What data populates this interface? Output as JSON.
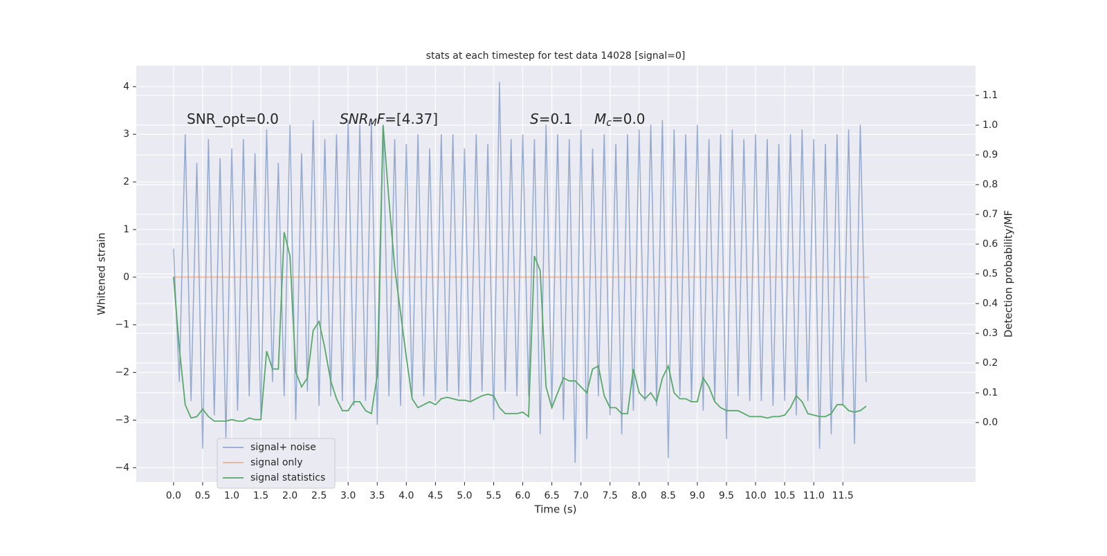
{
  "chart_data": {
    "type": "line",
    "title": "stats at each timestep for test data 14028 [signal=0]",
    "x_label": "Time (s)",
    "y_label": "Whitened strain",
    "y2_label": "Detection probability/MF",
    "grid": true,
    "legend": "lower left",
    "xlim": [
      -0.64,
      13.78
    ],
    "ylim": [
      -4.3,
      4.44
    ],
    "y2lim": [
      -0.2,
      1.2
    ],
    "xticks": [
      {
        "value": 0,
        "label": "0.0"
      },
      {
        "value": 0.5,
        "label": "0.5"
      },
      {
        "value": 1,
        "label": "1.0"
      },
      {
        "value": 1.5,
        "label": "1.5"
      },
      {
        "value": 2,
        "label": "2.0"
      },
      {
        "value": 2.5,
        "label": "2.5"
      },
      {
        "value": 3,
        "label": "3.0"
      },
      {
        "value": 3.5,
        "label": "3.5"
      },
      {
        "value": 4,
        "label": "4.0"
      },
      {
        "value": 4.5,
        "label": "4.5"
      },
      {
        "value": 5,
        "label": "5.0"
      },
      {
        "value": 5.5,
        "label": "5.5"
      },
      {
        "value": 6,
        "label": "6.0"
      },
      {
        "value": 6.5,
        "label": "6.5"
      },
      {
        "value": 7,
        "label": "7.0"
      },
      {
        "value": 7.5,
        "label": "7.5"
      },
      {
        "value": 8,
        "label": "8.0"
      },
      {
        "value": 8.5,
        "label": "8.5"
      },
      {
        "value": 9,
        "label": "9.0"
      },
      {
        "value": 9.5,
        "label": "9.5"
      },
      {
        "value": 10,
        "label": "10.0"
      },
      {
        "value": 10.5,
        "label": "10.5"
      },
      {
        "value": 11,
        "label": "11.0"
      },
      {
        "value": 11.5,
        "label": "11.5"
      }
    ],
    "yticks": [
      {
        "value": -4,
        "label": "−4"
      },
      {
        "value": -3,
        "label": "−3"
      },
      {
        "value": -2,
        "label": "−2"
      },
      {
        "value": -1,
        "label": "−1"
      },
      0,
      1,
      2,
      3,
      4
    ],
    "y2ticks": [
      {
        "value": 0,
        "label": "0.0"
      },
      {
        "value": 0.1,
        "label": "0.1"
      },
      {
        "value": 0.2,
        "label": "0.2"
      },
      {
        "value": 0.3,
        "label": "0.3"
      },
      {
        "value": 0.4,
        "label": "0.4"
      },
      {
        "value": 0.5,
        "label": "0.5"
      },
      {
        "value": 0.6,
        "label": "0.6"
      },
      {
        "value": 0.7,
        "label": "0.7"
      },
      {
        "value": 0.8,
        "label": "0.8"
      },
      {
        "value": 0.9,
        "label": "0.9"
      },
      {
        "value": 1,
        "label": "1.0"
      },
      {
        "value": 1.1,
        "label": "1.1"
      }
    ],
    "annotations": [
      {
        "parts": [
          {
            "text": "SNR_opt=0.0",
            "style": "normal"
          }
        ]
      },
      {
        "parts": [
          {
            "text": "SNR",
            "style": "italic"
          },
          {
            "text": "M",
            "style": "sub"
          },
          {
            "text": "F",
            "style": "italic"
          },
          {
            "text": "=[4.37]",
            "style": "normal"
          }
        ]
      },
      {
        "parts": [
          {
            "text": "S",
            "style": "italic"
          },
          {
            "text": "=0.1",
            "style": "normal"
          }
        ]
      },
      {
        "parts": [
          {
            "text": "M",
            "style": "italic"
          },
          {
            "text": "c",
            "style": "sub"
          },
          {
            "text": "=0.0",
            "style": "normal"
          }
        ]
      }
    ],
    "series": [
      {
        "name": "signal+ noise",
        "color": "#4c72b0",
        "axis": "y",
        "x": [
          0,
          0.1,
          0.2,
          0.3,
          0.4,
          0.5,
          0.6,
          0.7,
          0.8,
          0.9,
          1,
          1.1,
          1.2,
          1.3,
          1.4,
          1.5,
          1.6,
          1.7,
          1.8,
          1.9,
          2,
          2.1,
          2.2,
          2.3,
          2.4,
          2.5,
          2.6,
          2.7,
          2.8,
          2.9,
          3,
          3.1,
          3.2,
          3.3,
          3.4,
          3.5,
          3.6,
          3.7,
          3.8,
          3.9,
          4,
          4.1,
          4.2,
          4.3,
          4.4,
          4.5,
          4.6,
          4.7,
          4.8,
          4.9,
          5,
          5.1,
          5.2,
          5.3,
          5.4,
          5.5,
          5.6,
          5.7,
          5.8,
          5.9,
          6,
          6.1,
          6.2,
          6.3,
          6.4,
          6.5,
          6.6,
          6.7,
          6.8,
          6.9,
          7,
          7.1,
          7.2,
          7.3,
          7.4,
          7.5,
          7.6,
          7.7,
          7.8,
          7.9,
          8,
          8.1,
          8.2,
          8.3,
          8.4,
          8.5,
          8.6,
          8.7,
          8.8,
          8.9,
          9,
          9.1,
          9.2,
          9.3,
          9.4,
          9.5,
          9.6,
          9.7,
          9.8,
          9.9,
          10,
          10.1,
          10.2,
          10.3,
          10.4,
          10.5,
          10.6,
          10.7,
          10.8,
          10.9,
          11,
          11.1,
          11.2,
          11.3,
          11.4,
          11.5,
          11.6,
          11.7,
          11.8,
          11.9
        ],
        "values": [
          0.6,
          -2.2,
          3,
          -2.6,
          2.4,
          -3.6,
          2.9,
          -2.9,
          2.5,
          -3.4,
          2.7,
          -2.8,
          2.9,
          -2.5,
          2.6,
          -2.9,
          3.1,
          -2.2,
          2.4,
          -2.5,
          3.2,
          -3,
          2.6,
          -2.4,
          3.3,
          -2.7,
          2.9,
          -2.5,
          3.0,
          -2.6,
          3.3,
          -2.7,
          3.2,
          -2.6,
          3.3,
          -3.1,
          3.2,
          -2.5,
          2.9,
          -2.7,
          2.8,
          -2.5,
          3.0,
          -2.5,
          2.7,
          -2.6,
          3.0,
          -2.4,
          3.0,
          -2.5,
          2.7,
          -2.6,
          3.0,
          -2.4,
          2.8,
          -3.0,
          4.1,
          -2.4,
          2.9,
          -2.5,
          3.0,
          -2.5,
          2.9,
          -3.3,
          3.2,
          -2.7,
          3.0,
          -3.0,
          2.9,
          -3.9,
          3.1,
          -3.4,
          2.7,
          -2.5,
          3.0,
          -2.9,
          2.8,
          -3.3,
          3.0,
          -2.8,
          3.1,
          -2.6,
          3.2,
          -2.7,
          3.3,
          -3.8,
          3.1,
          -2.5,
          3.0,
          -2.6,
          3.2,
          -2.8,
          2.9,
          -2.6,
          3.0,
          -3.4,
          3.1,
          -2.5,
          2.9,
          -2.6,
          3.0,
          -2.6,
          2.9,
          -2.7,
          2.8,
          -2.6,
          3.0,
          -2.9,
          3.1,
          -2.6,
          2.9,
          -3.6,
          2.8,
          -3.3,
          3.0,
          -2.7,
          3.1,
          -3.5,
          3.2,
          -2.2
        ]
      },
      {
        "name": "signal only",
        "color": "#dd8452",
        "axis": "y",
        "x": [
          0,
          11.95
        ],
        "values": [
          0,
          0
        ]
      },
      {
        "name": "signal statistics",
        "color": "#55a868",
        "axis": "y2",
        "x": [
          0,
          0.1,
          0.2,
          0.3,
          0.4,
          0.5,
          0.6,
          0.7,
          0.8,
          0.9,
          1,
          1.1,
          1.2,
          1.3,
          1.4,
          1.5,
          1.6,
          1.7,
          1.8,
          1.9,
          2,
          2.1,
          2.2,
          2.3,
          2.4,
          2.5,
          2.6,
          2.7,
          2.8,
          2.9,
          3,
          3.1,
          3.2,
          3.3,
          3.4,
          3.5,
          3.6,
          3.7,
          3.8,
          3.9,
          4,
          4.1,
          4.2,
          4.3,
          4.4,
          4.5,
          4.6,
          4.7,
          4.8,
          4.9,
          5,
          5.1,
          5.2,
          5.3,
          5.4,
          5.5,
          5.6,
          5.7,
          5.8,
          5.9,
          6,
          6.1,
          6.2,
          6.3,
          6.4,
          6.5,
          6.6,
          6.7,
          6.8,
          6.9,
          7,
          7.1,
          7.2,
          7.3,
          7.4,
          7.5,
          7.6,
          7.7,
          7.8,
          7.9,
          8,
          8.1,
          8.2,
          8.3,
          8.4,
          8.5,
          8.6,
          8.7,
          8.8,
          8.9,
          9,
          9.1,
          9.2,
          9.3,
          9.4,
          9.5,
          9.6,
          9.7,
          9.8,
          9.9,
          10,
          10.1,
          10.2,
          10.3,
          10.4,
          10.5,
          10.6,
          10.7,
          10.8,
          10.9,
          11,
          11.1,
          11.2,
          11.3,
          11.4,
          11.5,
          11.6,
          11.7,
          11.8,
          11.9
        ],
        "values": [
          0.49,
          0.25,
          0.06,
          0.015,
          0.02,
          0.045,
          0.02,
          0.005,
          0.005,
          0.005,
          0.01,
          0.005,
          0.005,
          0.015,
          0.01,
          0.01,
          0.24,
          0.18,
          0.18,
          0.64,
          0.56,
          0.17,
          0.12,
          0.15,
          0.31,
          0.34,
          0.25,
          0.14,
          0.08,
          0.04,
          0.04,
          0.07,
          0.07,
          0.04,
          0.03,
          0.16,
          1.0,
          0.75,
          0.52,
          0.37,
          0.22,
          0.08,
          0.05,
          0.06,
          0.07,
          0.06,
          0.08,
          0.085,
          0.08,
          0.075,
          0.075,
          0.07,
          0.08,
          0.09,
          0.095,
          0.09,
          0.05,
          0.03,
          0.03,
          0.03,
          0.035,
          0.02,
          0.56,
          0.51,
          0.12,
          0.05,
          0.1,
          0.15,
          0.14,
          0.14,
          0.12,
          0.1,
          0.18,
          0.19,
          0.09,
          0.05,
          0.05,
          0.03,
          0.03,
          0.18,
          0.1,
          0.08,
          0.1,
          0.07,
          0.15,
          0.19,
          0.1,
          0.08,
          0.08,
          0.07,
          0.07,
          0.15,
          0.12,
          0.07,
          0.05,
          0.04,
          0.04,
          0.04,
          0.03,
          0.02,
          0.02,
          0.02,
          0.015,
          0.02,
          0.02,
          0.025,
          0.05,
          0.09,
          0.07,
          0.03,
          0.025,
          0.02,
          0.02,
          0.03,
          0.06,
          0.06,
          0.04,
          0.035,
          0.04,
          0.055
        ]
      }
    ]
  }
}
